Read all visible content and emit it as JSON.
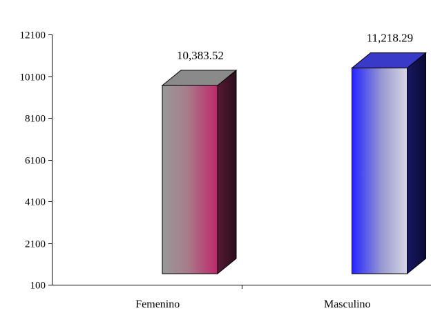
{
  "chart_data": {
    "type": "bar",
    "style": "3d-column",
    "categories": [
      "Femenino",
      "Masculino"
    ],
    "values": [
      10383.52,
      11218.29
    ],
    "data_labels": [
      "10,383.52",
      "11,218.29"
    ],
    "title": "",
    "xlabel": "",
    "ylabel": "",
    "ylim": [
      100,
      12100
    ],
    "yticks": [
      100,
      2100,
      4100,
      6100,
      8100,
      10100,
      12100
    ],
    "ytick_labels": [
      "100",
      "2100",
      "4100",
      "6100",
      "8100",
      "10100",
      "12100"
    ],
    "grid": false,
    "legend": "none",
    "colors": {
      "Femenino": {
        "front_edge": "#999999",
        "front_mid": "#a77d8b",
        "front_right": "#c0266b",
        "side": "#551a33",
        "top": "#8a8a8a"
      },
      "Masculino": {
        "front_edge": "#2424ff",
        "front_mid": "#9a9ad2",
        "front_right": "#d7d7e2",
        "side": "#181862",
        "top": "#3a3ac8"
      }
    }
  }
}
